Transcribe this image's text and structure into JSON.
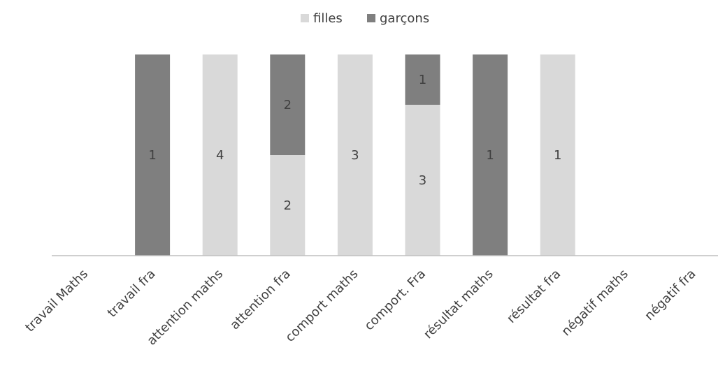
{
  "chart_data": {
    "type": "bar",
    "stacked": true,
    "percent_stacked": true,
    "title": "",
    "xlabel": "",
    "ylabel": "",
    "legend_position": "top",
    "categories": [
      "travail Maths",
      "travail fra",
      "attention maths",
      "attention fra",
      "comport maths",
      "comport. Fra",
      "résultat maths",
      "résultat fra",
      "négatif maths",
      "négatif fra"
    ],
    "series": [
      {
        "name": "filles",
        "color": "#d9d9d9",
        "values": [
          0,
          0,
          4,
          2,
          3,
          3,
          0,
          1,
          0,
          0
        ]
      },
      {
        "name": "garçons",
        "color": "#7f7f7f",
        "values": [
          0,
          1,
          0,
          2,
          0,
          1,
          1,
          0,
          0,
          0
        ]
      }
    ],
    "data_labels": true,
    "grid": false,
    "axis_color": "#bfbfbf",
    "label_color": "#404040"
  }
}
